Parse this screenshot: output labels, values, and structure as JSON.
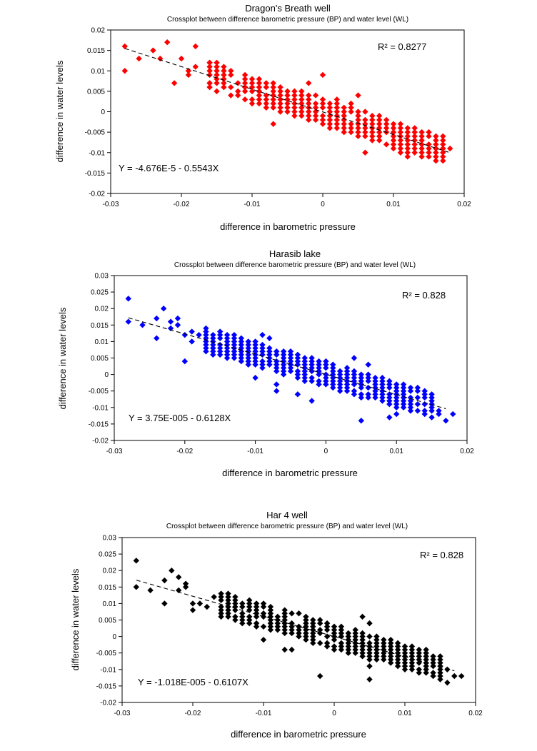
{
  "chart_data": [
    {
      "type": "scatter",
      "title": "Dragon's Breath well",
      "subtitle": "Crossplot between difference barometric pressure (BP) and water level (WL)",
      "xlabel": "difference in barometric pressure",
      "ylabel": "difference in water levels",
      "xlim": [
        -0.03,
        0.02
      ],
      "ylim": [
        -0.02,
        0.02
      ],
      "xticks": [
        "-0.03",
        "-0.02",
        "-0.01",
        "0",
        "0.01",
        "0.02"
      ],
      "yticks": [
        "0.02",
        "0.015",
        "0.01",
        "0.005",
        "0",
        "-0.005",
        "-0.01",
        "-0.015",
        "-0.02"
      ],
      "marker_color": "#ff0000",
      "regression": {
        "intercept": -4.676e-05,
        "slope": -0.5543,
        "x_range": [
          -0.028,
          0.018
        ]
      },
      "equation": "Y = -4.676E-5 - 0.5543X",
      "r2": "R² = 0.8277",
      "outliers": [
        [
          -0.028,
          0.016
        ],
        [
          -0.028,
          0.01
        ],
        [
          -0.026,
          0.013
        ],
        [
          -0.024,
          0.015
        ],
        [
          -0.023,
          0.013
        ],
        [
          -0.022,
          0.017
        ],
        [
          -0.021,
          0.007
        ],
        [
          -0.02,
          0.013
        ],
        [
          -0.019,
          0.01
        ],
        [
          -0.019,
          0.009
        ],
        [
          -0.018,
          0.016
        ],
        [
          -0.018,
          0.011
        ],
        [
          -0.016,
          0.012
        ],
        [
          -0.015,
          0.012
        ],
        [
          -0.016,
          0.007
        ],
        [
          0,
          0.009
        ],
        [
          0.002,
          0.003
        ],
        [
          0.004,
          0.002
        ],
        [
          0.005,
          0.004
        ],
        [
          0.006,
          -0.01
        ],
        [
          -0.007,
          -0.003
        ],
        [
          -0.002,
          0.007
        ],
        [
          0.011,
          -0.01
        ],
        [
          0.012,
          -0.011
        ],
        [
          0.016,
          -0.009
        ],
        [
          0.017,
          -0.009
        ],
        [
          0.018,
          -0.009
        ],
        [
          0.013,
          -0.009
        ]
      ],
      "cloud": {
        "x_start": -0.016,
        "x_end": 0.017,
        "x_step": 0.001,
        "y_step": 0.001,
        "half_width": 0.003
      }
    },
    {
      "type": "scatter",
      "title": "Harasib lake",
      "subtitle": "Crossplot between difference barometric pressure (BP) and water level (WL)",
      "xlabel": "difference in barometric pressure",
      "ylabel": "difference in water levels",
      "xlim": [
        -0.03,
        0.02
      ],
      "ylim": [
        -0.02,
        0.03
      ],
      "xticks": [
        "-0.03",
        "-0.02",
        "-0.01",
        "0",
        "0.01",
        "0.02"
      ],
      "yticks": [
        "0.03",
        "0.025",
        "0.02",
        "0.015",
        "0.01",
        "0.005",
        "0",
        "-0.005",
        "-0.01",
        "-0.015",
        "-0.02"
      ],
      "marker_color": "#0000ff",
      "regression": {
        "intercept": 3.75e-05,
        "slope": -0.6128,
        "x_range": [
          -0.028,
          0.017
        ]
      },
      "equation": "Y = 3.75E-005 - 0.6128X",
      "r2": "R² = 0.828",
      "outliers": [
        [
          -0.028,
          0.023
        ],
        [
          -0.028,
          0.016
        ],
        [
          -0.026,
          0.015
        ],
        [
          -0.024,
          0.017
        ],
        [
          -0.024,
          0.011
        ],
        [
          -0.023,
          0.02
        ],
        [
          -0.022,
          0.016
        ],
        [
          -0.022,
          0.014
        ],
        [
          -0.021,
          0.017
        ],
        [
          -0.021,
          0.015
        ],
        [
          -0.02,
          0.012
        ],
        [
          -0.02,
          0.004
        ],
        [
          -0.019,
          0.013
        ],
        [
          -0.019,
          0.01
        ],
        [
          -0.018,
          0.012
        ],
        [
          -0.016,
          0.008
        ],
        [
          -0.01,
          -0.001
        ],
        [
          -0.007,
          -0.003
        ],
        [
          -0.007,
          -0.005
        ],
        [
          -0.004,
          -0.006
        ],
        [
          -0.002,
          -0.008
        ],
        [
          0.005,
          -0.014
        ],
        [
          0.009,
          -0.013
        ],
        [
          0.01,
          -0.012
        ],
        [
          0.016,
          -0.012
        ],
        [
          0.017,
          -0.014
        ],
        [
          0.018,
          -0.012
        ],
        [
          0.016,
          -0.011
        ],
        [
          0.004,
          0.005
        ],
        [
          0.006,
          0.003
        ],
        [
          -0.009,
          0.012
        ],
        [
          -0.008,
          0.011
        ]
      ],
      "cloud": {
        "x_start": -0.017,
        "x_end": 0.015,
        "x_step": 0.001,
        "y_step": 0.001,
        "half_width": 0.0035
      }
    },
    {
      "type": "scatter",
      "title": "Har 4 well",
      "subtitle": "Crossplot between difference barometric pressure (BP) and water level (WL)",
      "xlabel": "difference in barometric pressure",
      "ylabel": "difference in water levels",
      "xlim": [
        -0.03,
        0.02
      ],
      "ylim": [
        -0.02,
        0.03
      ],
      "xticks": [
        "-0.03",
        "-0.02",
        "-0.01",
        "0",
        "0.01",
        "0.02"
      ],
      "yticks": [
        "0.03",
        "0.025",
        "0.02",
        "0.015",
        "0.01",
        "0.005",
        "0",
        "-0.005",
        "-0.01",
        "-0.015",
        "-0.02"
      ],
      "marker_color": "#000000",
      "regression": {
        "intercept": -1.018e-05,
        "slope": -0.6107,
        "x_range": [
          -0.028,
          0.017
        ]
      },
      "equation": "Y = -1.018E-005 - 0.6107X",
      "r2": "R² = 0.828",
      "outliers": [
        [
          -0.028,
          0.023
        ],
        [
          -0.028,
          0.015
        ],
        [
          -0.026,
          0.014
        ],
        [
          -0.024,
          0.017
        ],
        [
          -0.024,
          0.01
        ],
        [
          -0.023,
          0.02
        ],
        [
          -0.022,
          0.014
        ],
        [
          -0.022,
          0.018
        ],
        [
          -0.021,
          0.016
        ],
        [
          -0.021,
          0.015
        ],
        [
          -0.02,
          0.008
        ],
        [
          -0.02,
          0.01
        ],
        [
          -0.019,
          0.01
        ],
        [
          -0.018,
          0.009
        ],
        [
          -0.017,
          0.012
        ],
        [
          -0.016,
          0.007
        ],
        [
          -0.01,
          -0.001
        ],
        [
          -0.007,
          -0.004
        ],
        [
          -0.006,
          -0.004
        ],
        [
          -0.002,
          -0.012
        ],
        [
          0.005,
          -0.013
        ],
        [
          0.004,
          0.006
        ],
        [
          0.005,
          0.004
        ],
        [
          0.016,
          -0.014
        ],
        [
          0.017,
          -0.012
        ],
        [
          0.018,
          -0.012
        ],
        [
          0.016,
          -0.01
        ],
        [
          0.005,
          -0.009
        ]
      ],
      "cloud": {
        "x_start": -0.016,
        "x_end": 0.015,
        "x_step": 0.001,
        "y_step": 0.001,
        "half_width": 0.0035
      }
    }
  ]
}
